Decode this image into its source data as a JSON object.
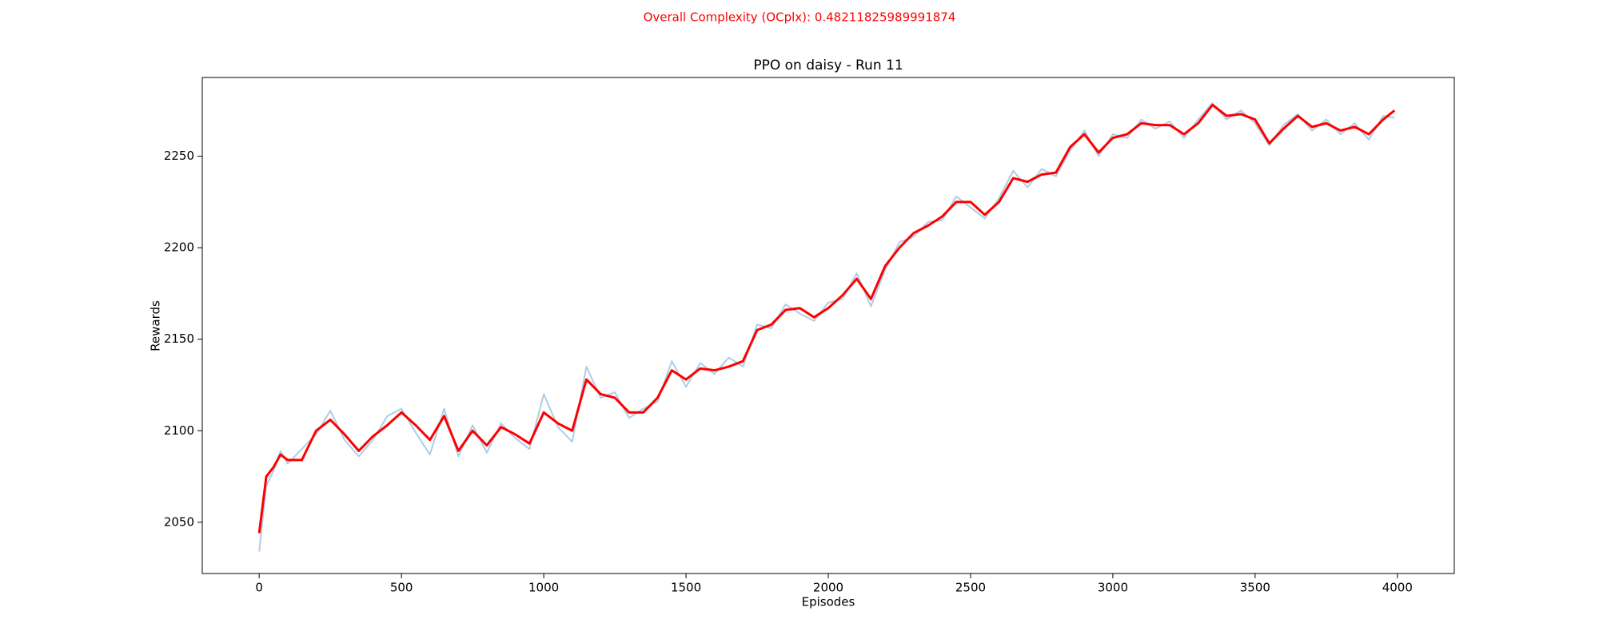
{
  "chart_data": {
    "type": "line",
    "suptitle": "Overall Complexity (OCplx): 0.48211825989991874",
    "suptitle_color": "#ff0000",
    "title": "PPO on daisy - Run 11",
    "xlabel": "Episodes",
    "ylabel": "Rewards",
    "x": [
      0,
      25,
      50,
      75,
      100,
      150,
      200,
      250,
      300,
      350,
      400,
      450,
      500,
      550,
      600,
      650,
      700,
      750,
      800,
      850,
      900,
      950,
      1000,
      1050,
      1100,
      1150,
      1200,
      1250,
      1300,
      1350,
      1400,
      1450,
      1500,
      1550,
      1600,
      1650,
      1700,
      1750,
      1800,
      1850,
      1900,
      1950,
      2000,
      2050,
      2100,
      2150,
      2200,
      2250,
      2300,
      2350,
      2400,
      2450,
      2500,
      2550,
      2600,
      2650,
      2700,
      2750,
      2800,
      2850,
      2900,
      2950,
      3000,
      3050,
      3100,
      3150,
      3200,
      3250,
      3300,
      3350,
      3400,
      3450,
      3500,
      3550,
      3600,
      3650,
      3700,
      3750,
      3800,
      3850,
      3900,
      3950,
      3990
    ],
    "series": [
      {
        "color": "#aecde6",
        "values": [
          2034,
          2070,
          2078,
          2089,
          2082,
          2090,
          2098,
          2111,
          2095,
          2086,
          2095,
          2108,
          2112,
          2099,
          2087,
          2112,
          2086,
          2103,
          2088,
          2104,
          2096,
          2090,
          2120,
          2102,
          2094,
          2135,
          2118,
          2121,
          2107,
          2112,
          2116,
          2138,
          2124,
          2137,
          2131,
          2140,
          2135,
          2158,
          2156,
          2169,
          2164,
          2160,
          2170,
          2172,
          2186,
          2168,
          2188,
          2203,
          2206,
          2214,
          2215,
          2228,
          2222,
          2216,
          2227,
          2242,
          2233,
          2243,
          2239,
          2253,
          2264,
          2250,
          2262,
          2260,
          2270,
          2265,
          2269,
          2260,
          2270,
          2279,
          2270,
          2275,
          2268,
          2256,
          2267,
          2273,
          2264,
          2270,
          2262,
          2268,
          2259,
          2272,
          2271
        ]
      },
      {
        "color": "#ff0000",
        "values": [
          2044,
          2075,
          2080,
          2087,
          2084,
          2084,
          2100,
          2106,
          2098,
          2089,
          2097,
          2103,
          2110,
          2103,
          2095,
          2108,
          2089,
          2100,
          2092,
          2102,
          2098,
          2093,
          2110,
          2104,
          2100,
          2128,
          2120,
          2118,
          2110,
          2110,
          2118,
          2133,
          2128,
          2134,
          2133,
          2135,
          2138,
          2155,
          2158,
          2166,
          2167,
          2162,
          2167,
          2174,
          2183,
          2172,
          2190,
          2200,
          2208,
          2212,
          2217,
          2225,
          2225,
          2218,
          2225,
          2238,
          2236,
          2240,
          2241,
          2255,
          2262,
          2252,
          2260,
          2262,
          2268,
          2267,
          2267,
          2262,
          2268,
          2278,
          2272,
          2273,
          2270,
          2257,
          2265,
          2272,
          2266,
          2268,
          2264,
          2266,
          2262,
          2270,
          2275
        ]
      }
    ],
    "xlim": [
      -200,
      4200
    ],
    "ylim": [
      2022,
      2293
    ],
    "xticks": [
      0,
      500,
      1000,
      1500,
      2000,
      2500,
      3000,
      3500,
      4000
    ],
    "yticks": [
      2050,
      2100,
      2150,
      2200,
      2250
    ]
  }
}
